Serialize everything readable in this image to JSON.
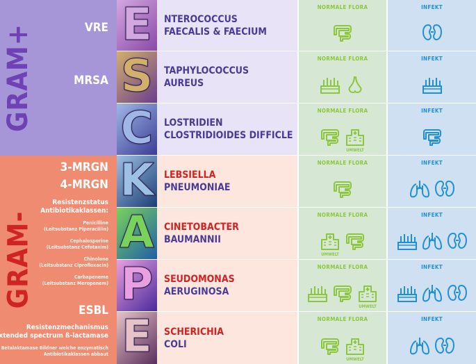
{
  "groups": {
    "plus": {
      "title": "GRAM+",
      "labels": [
        "VRE",
        "MRSA"
      ]
    },
    "minus": {
      "title": "GRAM-",
      "labels": [
        "3-MRGN",
        "4-MRGN"
      ],
      "resistance_heading": "Resistenzstatus Antibiotikaklassen:",
      "classes": [
        {
          "name": "Penicilline",
          "sub": "(Leitsubstanz Piperacillin)"
        },
        {
          "name": "Cephalosporine",
          "sub": "(Leitsubstanz Cefotaxim)"
        },
        {
          "name": "Chinolone",
          "sub": "(Leitsubstanz Ciprofloxacin)"
        },
        {
          "name": "Carbapeneme",
          "sub": "(Leitsubstanz Meropenem)"
        }
      ],
      "esbl": {
        "title": "ESBL",
        "heading1": "Resistenzmechanismus",
        "heading2": "Extended spectrum ß-lactamase",
        "desc1": "Betalaktamase Bildner welche enzymatisch",
        "desc2": "Antibiotikaklassen abbaut"
      }
    }
  },
  "columns": {
    "normal": "NORMALE FLORA",
    "infection": "INFEKT"
  },
  "rows": [
    {
      "letter": "E",
      "line1": "NTEROCOCCUS",
      "line2": "FAECALIS & FAECIUM",
      "normal": [
        "intestine-icon"
      ],
      "infection": [
        "kidney-icon"
      ],
      "colors": [
        "#d3a7e0",
        "#8a4aa8"
      ]
    },
    {
      "letter": "S",
      "line1": "TAPHYLOCOCCUS",
      "line2": "AUREUS",
      "normal": [
        "skin-icon",
        "nose-icon"
      ],
      "infection": [
        "skin-icon"
      ],
      "colors": [
        "#d2b06b",
        "#6a3d8e"
      ]
    },
    {
      "letter": "C",
      "line1": "LOSTRIDIEN",
      "line2": "CLOSTRIDIOIDES DIFFICLE",
      "normal": [
        "intestine-icon",
        "hospital-icon"
      ],
      "infection": [
        "intestine-icon"
      ],
      "colors": [
        "#9fb7e6",
        "#3b3d94"
      ]
    },
    {
      "letter": "K",
      "line1": "LEBSIELLA",
      "line2": "PNEUMONIAE",
      "normal": [
        "intestine-icon"
      ],
      "infection": [
        "lungs-icon",
        "kidney-icon"
      ],
      "colors": [
        "#9cc1e4",
        "#1d3d73"
      ]
    },
    {
      "letter": "A",
      "line1": "CINETOBACTER",
      "line2": "BAUMANNII",
      "normal": [
        "hospital-icon",
        "intestine-icon"
      ],
      "infection": [
        "skin-icon",
        "lungs-icon",
        "kidney-icon"
      ],
      "colors": [
        "#79d25a",
        "#1f5fa8"
      ]
    },
    {
      "letter": "P",
      "line1": "SEUDOMONAS",
      "line2": "AERUGINOSA",
      "normal": [
        "skin-icon",
        "intestine-icon",
        "hospital-icon"
      ],
      "infection": [
        "skin-icon",
        "lungs-icon",
        "kidney-icon"
      ],
      "colors": [
        "#e9a0e0",
        "#4a2a9a"
      ]
    },
    {
      "letter": "E",
      "line1": "SCHERICHIA",
      "line2": "COLI",
      "normal": [
        "intestine-icon",
        "hospital-icon"
      ],
      "infection": [
        "lungs-icon",
        "kidney-icon"
      ],
      "colors": [
        "#e6c3c8",
        "#5a2e5c"
      ]
    }
  ],
  "hospital_label": "UMWELT",
  "colors": {
    "plus_bg": "#a696d8",
    "minus_bg": "#ef8b70",
    "normal_flora": "#8cc63f",
    "infection": "#1f8fd6"
  }
}
